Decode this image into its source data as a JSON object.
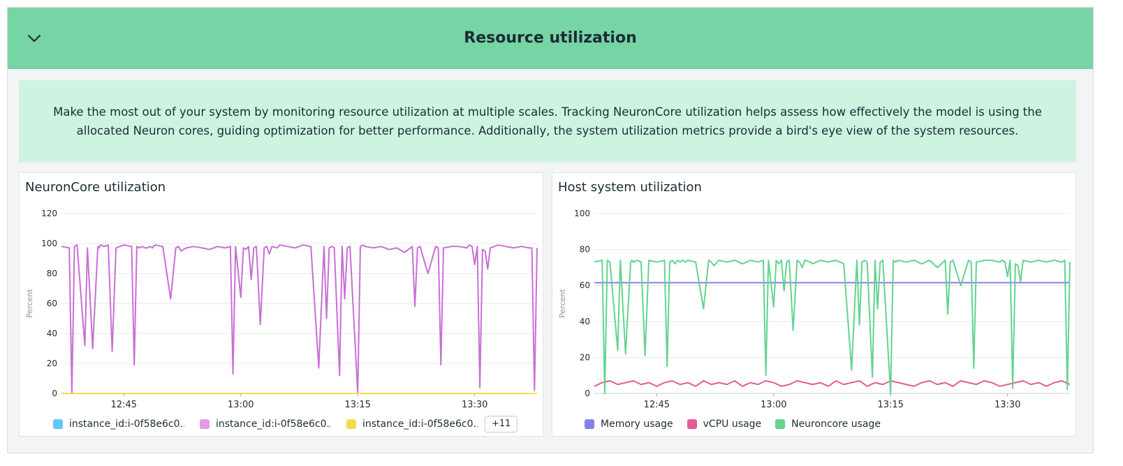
{
  "header": {
    "title": "Resource utilization",
    "toggle_icon": "chevron-down-icon"
  },
  "description": "Make the most out of your system by monitoring resource utilization at multiple scales. Tracking NeuronCore utilization helps assess how effectively the model is using the allocated Neuron cores, guiding optimization for better performance. Additionally, the system utilization metrics provide a bird's eye view of the system resources.",
  "more_button": "+11",
  "chart_data": [
    {
      "type": "line",
      "title": "NeuronCore utilization",
      "ylabel": "Percent",
      "xlabel": "",
      "ylim": [
        0,
        120
      ],
      "yticks": [
        0,
        20,
        40,
        60,
        80,
        100,
        120
      ],
      "xlim": [
        "12:37",
        "13:38"
      ],
      "xticks": [
        "12:45",
        "13:00",
        "13:15",
        "13:30"
      ],
      "grid": true,
      "legend_position": "bottom",
      "series": [
        {
          "name": "instance_id:i-0f58e6c0...",
          "color": "#62c6f5",
          "x": [
            "12:37",
            "13:38"
          ],
          "y": [
            0,
            0
          ]
        },
        {
          "name": "instance_id:i-0f58e6c0...",
          "color": "#c86fd4",
          "x": [
            "12:37",
            "12:38",
            "12:38:20",
            "12:38:40",
            "12:39",
            "12:40",
            "12:40:20",
            "12:41",
            "12:41:40",
            "12:41:50",
            "12:42",
            "12:42:30",
            "12:43",
            "12:43:30",
            "12:44",
            "12:45",
            "12:46",
            "12:46:20",
            "12:46:40",
            "12:47",
            "12:47:20",
            "12:47:40",
            "12:48",
            "12:48:20",
            "12:48:40",
            "12:49",
            "12:50",
            "12:51",
            "12:51:40",
            "12:52",
            "12:52:20",
            "12:53",
            "12:54",
            "12:55",
            "12:56",
            "12:57",
            "12:58",
            "12:58:40",
            "12:59",
            "12:59:20",
            "13:00",
            "13:00:20",
            "13:00:40",
            "13:01",
            "13:01:20",
            "13:01:40",
            "13:02",
            "13:02:30",
            "13:03",
            "13:03:20",
            "13:03:40",
            "13:04",
            "13:04:40",
            "13:05",
            "13:06",
            "13:07",
            "13:08",
            "13:09",
            "13:10",
            "13:10:40",
            "13:11",
            "13:11:20",
            "13:11:40",
            "13:12",
            "13:12:40",
            "13:13",
            "13:13:20",
            "13:13:40",
            "13:14",
            "13:15",
            "13:15:20",
            "13:15:40",
            "13:16",
            "13:17",
            "13:18",
            "13:19",
            "13:20",
            "13:21",
            "13:22",
            "13:22:20",
            "13:22:40",
            "13:23",
            "13:24",
            "13:25",
            "13:25:20",
            "13:25:40",
            "13:26",
            "13:27",
            "13:28",
            "13:29",
            "13:29:20",
            "13:29:40",
            "13:30",
            "13:30:20",
            "13:30:40",
            "13:31",
            "13:31:20",
            "13:31:40",
            "13:32",
            "13:33",
            "13:34",
            "13:35",
            "13:36",
            "13:37",
            "13:37:20",
            "13:37:40",
            "13:38"
          ],
          "y": [
            98,
            97,
            0,
            98,
            99,
            32,
            97,
            30,
            98,
            97,
            99,
            98,
            99,
            28,
            97,
            99,
            98,
            19,
            98,
            97,
            98,
            97,
            97,
            98,
            97,
            99,
            98,
            63,
            97,
            98,
            95,
            97,
            98,
            97,
            96,
            98,
            97,
            98,
            13,
            98,
            64,
            97,
            96,
            98,
            76,
            97,
            98,
            46,
            97,
            98,
            93,
            98,
            97,
            99,
            98,
            97,
            99,
            98,
            17,
            98,
            50,
            97,
            98,
            97,
            12,
            98,
            63,
            97,
            98,
            0,
            98,
            99,
            98,
            97,
            98,
            96,
            97,
            94,
            98,
            58,
            97,
            98,
            80,
            98,
            97,
            19,
            97,
            98,
            98,
            97,
            99,
            98,
            86,
            98,
            4,
            96,
            95,
            83,
            97,
            99,
            98,
            97,
            98,
            97,
            97,
            2,
            97
          ]
        },
        {
          "name": "instance_id:i-0f58e6c0...",
          "color": "#f5dc4d",
          "x": [
            "12:37",
            "13:38"
          ],
          "y": [
            0,
            0
          ]
        }
      ]
    },
    {
      "type": "line",
      "title": "Host system utilization",
      "ylabel": "Percent",
      "xlabel": "",
      "ylim": [
        0,
        100
      ],
      "yticks": [
        0,
        20,
        40,
        60,
        80,
        100
      ],
      "xlim": [
        "12:37",
        "13:38"
      ],
      "xticks": [
        "12:45",
        "13:00",
        "13:15",
        "13:30"
      ],
      "grid": true,
      "legend_position": "bottom",
      "series": [
        {
          "name": "Memory usage",
          "color": "#8582e6",
          "x": [
            "12:37",
            "13:38"
          ],
          "y": [
            61.5,
            61.5
          ]
        },
        {
          "name": "vCPU usage",
          "color": "#e35c95",
          "x": [
            "12:37",
            "12:38",
            "12:39",
            "12:40",
            "12:41",
            "12:42",
            "12:43",
            "12:44",
            "12:45",
            "12:46",
            "12:47",
            "12:48",
            "12:49",
            "12:50",
            "12:51",
            "12:52",
            "12:53",
            "12:54",
            "12:55",
            "12:56",
            "12:57",
            "12:58",
            "12:59",
            "13:00",
            "13:01",
            "13:02",
            "13:03",
            "13:04",
            "13:05",
            "13:06",
            "13:07",
            "13:08",
            "13:09",
            "13:10",
            "13:11",
            "13:12",
            "13:13",
            "13:14",
            "13:15",
            "13:16",
            "13:17",
            "13:18",
            "13:19",
            "13:20",
            "13:21",
            "13:22",
            "13:23",
            "13:24",
            "13:25",
            "13:26",
            "13:27",
            "13:28",
            "13:29",
            "13:30",
            "13:31",
            "13:32",
            "13:33",
            "13:34",
            "13:35",
            "13:36",
            "13:37",
            "13:38"
          ],
          "y": [
            4,
            6,
            7,
            5,
            6,
            7,
            5,
            6,
            4,
            6,
            7,
            5,
            6,
            4,
            7,
            5,
            6,
            5,
            7,
            4,
            6,
            5,
            7,
            6,
            4,
            5,
            7,
            6,
            5,
            6,
            4,
            7,
            5,
            6,
            7,
            4,
            6,
            5,
            7,
            6,
            5,
            4,
            6,
            7,
            5,
            6,
            4,
            7,
            6,
            5,
            7,
            6,
            4,
            5,
            6,
            7,
            5,
            6,
            4,
            6,
            7,
            5
          ]
        },
        {
          "name": "Neuroncore usage",
          "color": "#63d38f",
          "x": [
            "12:37",
            "12:38",
            "12:38:20",
            "12:38:40",
            "12:39",
            "12:40",
            "12:40:20",
            "12:41",
            "12:41:40",
            "12:41:50",
            "12:42",
            "12:42:30",
            "12:43",
            "12:43:30",
            "12:44",
            "12:45",
            "12:46",
            "12:46:20",
            "12:46:40",
            "12:47",
            "12:47:20",
            "12:47:40",
            "12:48",
            "12:48:20",
            "12:48:40",
            "12:49",
            "12:50",
            "12:51",
            "12:51:40",
            "12:52",
            "12:52:20",
            "12:53",
            "12:54",
            "12:55",
            "12:56",
            "12:57",
            "12:58",
            "12:58:40",
            "12:59",
            "12:59:20",
            "13:00",
            "13:00:20",
            "13:00:40",
            "13:01",
            "13:01:20",
            "13:01:40",
            "13:02",
            "13:02:30",
            "13:03",
            "13:03:20",
            "13:03:40",
            "13:04",
            "13:04:40",
            "13:05",
            "13:06",
            "13:07",
            "13:08",
            "13:09",
            "13:10",
            "13:10:40",
            "13:11",
            "13:11:20",
            "13:11:40",
            "13:12",
            "13:12:40",
            "13:13",
            "13:13:20",
            "13:13:40",
            "13:14",
            "13:15",
            "13:15:20",
            "13:15:40",
            "13:16",
            "13:17",
            "13:18",
            "13:19",
            "13:20",
            "13:21",
            "13:22",
            "13:22:20",
            "13:22:40",
            "13:23",
            "13:24",
            "13:25",
            "13:25:20",
            "13:25:40",
            "13:26",
            "13:27",
            "13:28",
            "13:29",
            "13:29:20",
            "13:29:40",
            "13:30",
            "13:30:20",
            "13:30:40",
            "13:31",
            "13:31:20",
            "13:31:40",
            "13:32",
            "13:33",
            "13:34",
            "13:35",
            "13:36",
            "13:37",
            "13:37:20",
            "13:37:40",
            "13:38"
          ],
          "y": [
            73,
            74,
            0,
            74,
            73,
            24,
            74,
            22,
            73,
            74,
            73,
            74,
            73,
            21,
            74,
            73,
            74,
            15,
            73,
            74,
            72,
            74,
            73,
            74,
            73,
            74,
            73,
            47,
            74,
            73,
            71,
            74,
            73,
            74,
            72,
            74,
            73,
            74,
            10,
            74,
            48,
            74,
            72,
            74,
            57,
            73,
            74,
            35,
            74,
            73,
            70,
            74,
            73,
            72,
            74,
            73,
            74,
            72,
            13,
            74,
            38,
            73,
            74,
            73,
            9,
            74,
            47,
            73,
            74,
            0,
            74,
            73,
            74,
            73,
            74,
            72,
            74,
            70,
            74,
            44,
            73,
            74,
            60,
            74,
            73,
            14,
            73,
            74,
            74,
            73,
            74,
            73,
            65,
            74,
            3,
            72,
            71,
            62,
            74,
            73,
            74,
            73,
            74,
            73,
            74,
            2,
            73
          ]
        }
      ]
    }
  ]
}
